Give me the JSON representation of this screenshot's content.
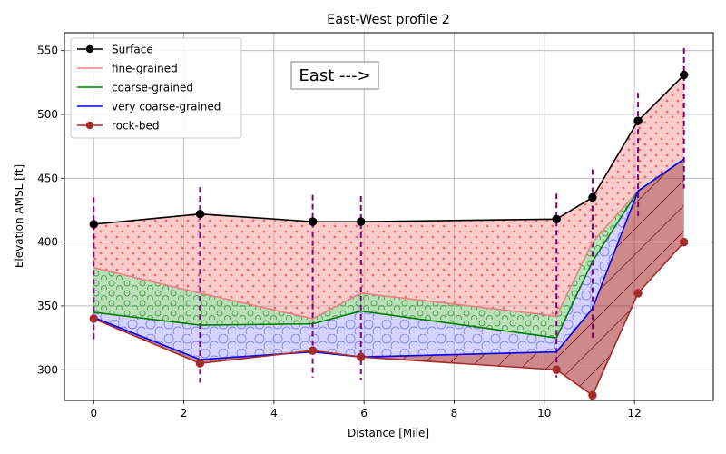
{
  "chart_data": {
    "type": "area",
    "title": "East-West profile 2",
    "xlabel": "Distance [Mile]",
    "ylabel": "Elevation AMSL [ft]",
    "xlim": [
      -0.65,
      13.75
    ],
    "ylim": [
      276,
      564
    ],
    "xticks": [
      0,
      2,
      4,
      6,
      8,
      10,
      12
    ],
    "yticks": [
      300,
      350,
      400,
      450,
      500,
      550
    ],
    "xtick_labels": [
      "0",
      "2",
      "4",
      "6",
      "8",
      "10",
      "12"
    ],
    "ytick_labels": [
      "300",
      "350",
      "400",
      "450",
      "500",
      "550"
    ],
    "grid": true,
    "legend_position": "top-left",
    "annotation": "East --->",
    "x": [
      0,
      2.36,
      4.86,
      5.93,
      10.27,
      11.07,
      12.08,
      13.1
    ],
    "series": [
      {
        "name": "Surface",
        "color": "#000000",
        "marker": "circle",
        "values": [
          414,
          422,
          416,
          416,
          418,
          435,
          495,
          531
        ]
      },
      {
        "name": "fine-grained",
        "color": "#f08080",
        "marker": "none",
        "values": [
          380,
          360,
          340,
          360,
          342,
          400,
          440,
          465
        ]
      },
      {
        "name": "coarse-grained",
        "color": "#008000",
        "marker": "none",
        "values": [
          345,
          335,
          336,
          346,
          325,
          385,
          440,
          465
        ]
      },
      {
        "name": "very coarse-grained",
        "color": "#0000ff",
        "marker": "none",
        "values": [
          341,
          308,
          314,
          310,
          314,
          348,
          440,
          465
        ]
      },
      {
        "name": "rock-bed",
        "color": "#a52a2a",
        "marker": "circle",
        "values": [
          340,
          305,
          315,
          310,
          300,
          280,
          360,
          400
        ]
      }
    ],
    "wells": {
      "color": "#800080",
      "style": "dashed",
      "x": [
        0,
        2.36,
        4.86,
        5.93,
        10.27,
        11.07,
        12.08,
        13.1
      ],
      "top": [
        435,
        443,
        437,
        436,
        438,
        457,
        517,
        552
      ],
      "bottom": [
        322,
        290,
        294,
        292,
        294,
        325,
        420,
        442
      ]
    },
    "fills": [
      {
        "between": [
          "Surface",
          "fine-grained"
        ],
        "color": "#f4a0a0",
        "pattern": "dots"
      },
      {
        "between": [
          "fine-grained",
          "coarse-grained"
        ],
        "color": "#7fc97f",
        "pattern": "small-circles"
      },
      {
        "between": [
          "coarse-grained",
          "very coarse-grained"
        ],
        "color": "#b0b0ff",
        "pattern": "large-circles"
      },
      {
        "between": [
          "very coarse-grained",
          "rock-bed"
        ],
        "color": "#a52a2a",
        "pattern": "diagonal-hatch"
      }
    ]
  }
}
